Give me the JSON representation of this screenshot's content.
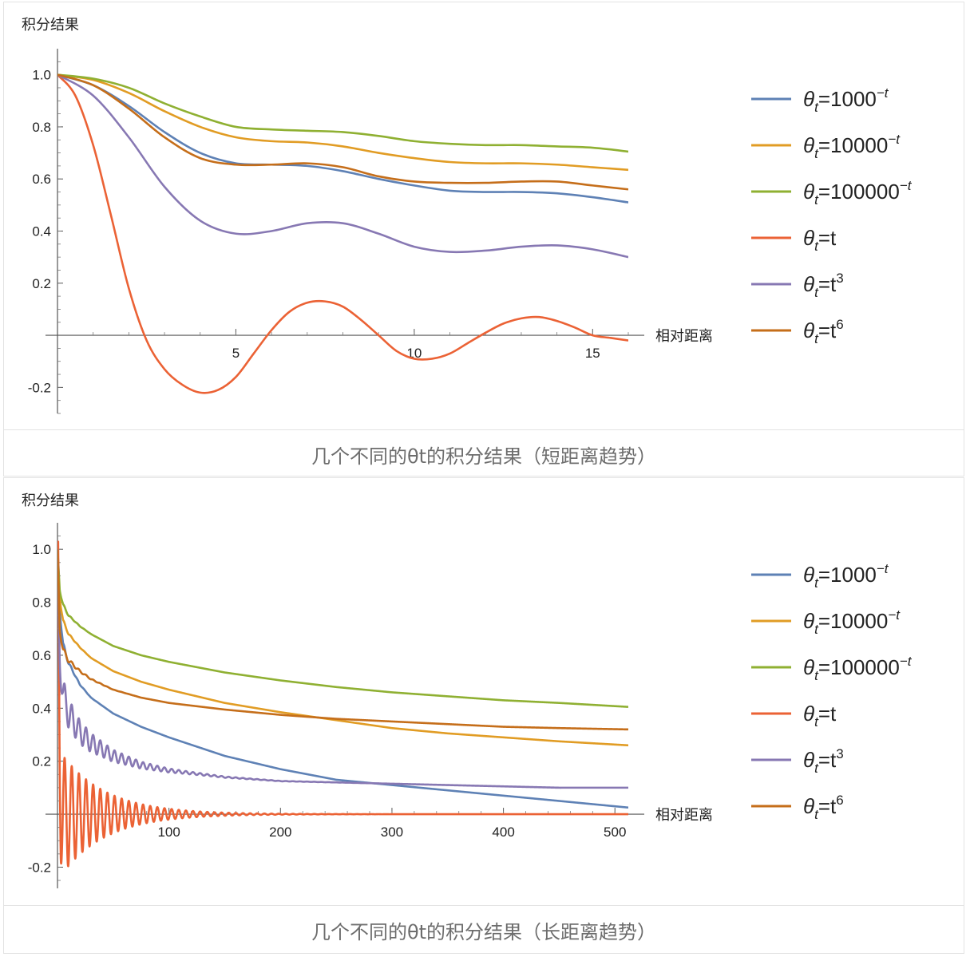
{
  "chart_data": [
    {
      "type": "line",
      "caption": "几个不同的θt的积分结果（短距离趋势）",
      "ylabel": "积分结果",
      "xlabel": "相对距离",
      "xlim": [
        0,
        16
      ],
      "ylim": [
        -0.3,
        1.1
      ],
      "xticks": [
        5,
        10,
        15
      ],
      "xtick_labels": [
        "5",
        "10",
        "15"
      ],
      "yticks": [
        -0.2,
        0.2,
        0.4,
        0.6,
        0.8,
        1.0
      ],
      "ytick_labels": [
        "-0.2",
        "0.2",
        "0.4",
        "0.6",
        "0.8",
        "1.0"
      ],
      "series": [
        {
          "name": "θt=1000^-t",
          "legend": {
            "base": "θ",
            "sub": "t",
            "mid": "=1000",
            "sup": "−t"
          },
          "color": "#5e81b5",
          "x": [
            0,
            1,
            2,
            3,
            4,
            5,
            6,
            7,
            8,
            9,
            10,
            11,
            12,
            13,
            14,
            15,
            16
          ],
          "y": [
            1.0,
            0.96,
            0.88,
            0.78,
            0.7,
            0.66,
            0.655,
            0.65,
            0.63,
            0.6,
            0.575,
            0.555,
            0.55,
            0.55,
            0.545,
            0.53,
            0.51
          ]
        },
        {
          "name": "θt=10000^-t",
          "legend": {
            "base": "θ",
            "sub": "t",
            "mid": "=10000",
            "sup": "−t"
          },
          "color": "#e19c24",
          "x": [
            0,
            1,
            2,
            3,
            4,
            5,
            6,
            7,
            8,
            9,
            10,
            11,
            12,
            13,
            14,
            15,
            16
          ],
          "y": [
            1.0,
            0.98,
            0.93,
            0.86,
            0.8,
            0.76,
            0.745,
            0.74,
            0.725,
            0.7,
            0.68,
            0.665,
            0.66,
            0.66,
            0.655,
            0.645,
            0.635
          ]
        },
        {
          "name": "θt=100000^-t",
          "legend": {
            "base": "θ",
            "sub": "t",
            "mid": "=100000",
            "sup": "−t"
          },
          "color": "#8fb032",
          "x": [
            0,
            1,
            2,
            3,
            4,
            5,
            6,
            7,
            8,
            9,
            10,
            11,
            12,
            13,
            14,
            15,
            16
          ],
          "y": [
            1.0,
            0.985,
            0.95,
            0.89,
            0.84,
            0.8,
            0.79,
            0.785,
            0.78,
            0.765,
            0.745,
            0.735,
            0.73,
            0.73,
            0.725,
            0.72,
            0.705
          ]
        },
        {
          "name": "θt=t",
          "legend": {
            "base": "θ",
            "sub": "t",
            "mid": "=t",
            "sup": ""
          },
          "color": "#eb6235",
          "x": [
            0,
            0.5,
            1,
            1.5,
            2,
            2.5,
            3,
            3.5,
            4,
            4.5,
            5,
            5.5,
            6,
            6.5,
            7,
            7.5,
            8,
            8.5,
            9,
            9.5,
            10,
            10.5,
            11,
            11.5,
            12,
            12.5,
            13,
            13.5,
            14,
            14.5,
            15,
            15.5,
            16
          ],
          "y": [
            1.0,
            0.92,
            0.73,
            0.46,
            0.18,
            -0.02,
            -0.13,
            -0.19,
            -0.22,
            -0.21,
            -0.16,
            -0.07,
            0.02,
            0.09,
            0.125,
            0.13,
            0.11,
            0.06,
            0.0,
            -0.06,
            -0.09,
            -0.09,
            -0.07,
            -0.03,
            0.01,
            0.045,
            0.065,
            0.07,
            0.055,
            0.03,
            0.0,
            -0.01,
            -0.02
          ]
        },
        {
          "name": "θt=t^3",
          "legend": {
            "base": "θ",
            "sub": "t",
            "mid": "=t",
            "sup": "3"
          },
          "color": "#8778b3",
          "x": [
            0,
            1,
            2,
            3,
            4,
            5,
            6,
            7,
            8,
            9,
            10,
            11,
            12,
            13,
            14,
            15,
            16
          ],
          "y": [
            1.0,
            0.92,
            0.76,
            0.57,
            0.44,
            0.39,
            0.4,
            0.43,
            0.43,
            0.39,
            0.34,
            0.32,
            0.325,
            0.34,
            0.345,
            0.33,
            0.3
          ]
        },
        {
          "name": "θt=t^6",
          "legend": {
            "base": "θ",
            "sub": "t",
            "mid": "=t",
            "sup": "6"
          },
          "color": "#c56e1a",
          "x": [
            0,
            1,
            2,
            3,
            4,
            5,
            6,
            7,
            8,
            9,
            10,
            11,
            12,
            13,
            14,
            15,
            16
          ],
          "y": [
            1.0,
            0.96,
            0.87,
            0.76,
            0.68,
            0.655,
            0.655,
            0.66,
            0.645,
            0.61,
            0.59,
            0.585,
            0.585,
            0.59,
            0.59,
            0.575,
            0.56
          ]
        }
      ]
    },
    {
      "type": "line",
      "caption": "几个不同的θt的积分结果（长距离趋势）",
      "ylabel": "积分结果",
      "xlabel": "相对距离",
      "xlim": [
        0,
        512
      ],
      "ylim": [
        -0.28,
        1.1
      ],
      "xticks": [
        100,
        200,
        300,
        400,
        500
      ],
      "xtick_labels": [
        "100",
        "200",
        "300",
        "400",
        "500"
      ],
      "yticks": [
        -0.2,
        0.2,
        0.4,
        0.6,
        0.8,
        1.0
      ],
      "ytick_labels": [
        "-0.2",
        "0.2",
        "0.4",
        "0.6",
        "0.8",
        "1.0"
      ],
      "series": [
        {
          "name": "θt=1000^-t",
          "legend": {
            "base": "θ",
            "sub": "t",
            "mid": "=1000",
            "sup": "−t"
          },
          "color": "#5e81b5",
          "x": [
            0,
            2,
            5,
            10,
            20,
            30,
            50,
            75,
            100,
            150,
            200,
            250,
            300,
            350,
            400,
            450,
            512
          ],
          "y": [
            1.0,
            0.78,
            0.64,
            0.57,
            0.49,
            0.44,
            0.38,
            0.33,
            0.29,
            0.22,
            0.17,
            0.13,
            0.11,
            0.09,
            0.07,
            0.05,
            0.025
          ],
          "osc": {
            "amp": 0.02,
            "decay": 8,
            "period": 6
          }
        },
        {
          "name": "θt=10000^-t",
          "legend": {
            "base": "θ",
            "sub": "t",
            "mid": "=10000",
            "sup": "−t"
          },
          "color": "#e19c24",
          "x": [
            0,
            2,
            5,
            10,
            20,
            30,
            50,
            75,
            100,
            150,
            200,
            250,
            300,
            350,
            400,
            450,
            512
          ],
          "y": [
            1.0,
            0.82,
            0.73,
            0.68,
            0.63,
            0.59,
            0.54,
            0.5,
            0.47,
            0.42,
            0.385,
            0.355,
            0.325,
            0.305,
            0.29,
            0.275,
            0.26
          ],
          "osc": {
            "amp": 0.012,
            "decay": 8,
            "period": 6
          }
        },
        {
          "name": "θt=100000^-t",
          "legend": {
            "base": "θ",
            "sub": "t",
            "mid": "=100000",
            "sup": "−t"
          },
          "color": "#8fb032",
          "x": [
            0,
            2,
            5,
            10,
            20,
            30,
            50,
            75,
            100,
            150,
            200,
            250,
            300,
            350,
            400,
            450,
            512
          ],
          "y": [
            1.0,
            0.85,
            0.79,
            0.75,
            0.71,
            0.68,
            0.635,
            0.6,
            0.575,
            0.535,
            0.505,
            0.48,
            0.46,
            0.445,
            0.43,
            0.42,
            0.405
          ],
          "osc": {
            "amp": 0.01,
            "decay": 8,
            "period": 6
          }
        },
        {
          "name": "θt=t",
          "legend": {
            "base": "θ",
            "sub": "t",
            "mid": "=t",
            "sup": ""
          },
          "color": "#eb6235",
          "x": [
            0,
            1,
            2,
            3,
            5,
            10,
            20,
            50,
            100,
            200,
            300,
            400,
            512
          ],
          "y": [
            1.0,
            0.7,
            0.25,
            0.05,
            0.0,
            0.0,
            0.0,
            0.0,
            0.0,
            0.0,
            0.0,
            0.0,
            0.0
          ],
          "osc": {
            "amp": 0.25,
            "decay": 40,
            "period": 6.4
          }
        },
        {
          "name": "θt=t^3",
          "legend": {
            "base": "θ",
            "sub": "t",
            "mid": "=t",
            "sup": "3"
          },
          "color": "#8778b3",
          "x": [
            0,
            2,
            5,
            10,
            20,
            30,
            50,
            75,
            100,
            150,
            200,
            250,
            300,
            350,
            400,
            450,
            512
          ],
          "y": [
            1.0,
            0.6,
            0.45,
            0.38,
            0.31,
            0.27,
            0.22,
            0.185,
            0.165,
            0.14,
            0.125,
            0.12,
            0.115,
            0.11,
            0.105,
            0.1,
            0.1
          ],
          "osc": {
            "amp": 0.07,
            "decay": 45,
            "period": 6.4
          }
        },
        {
          "name": "θt=t^6",
          "legend": {
            "base": "θ",
            "sub": "t",
            "mid": "=t",
            "sup": "6"
          },
          "color": "#c56e1a",
          "x": [
            0,
            2,
            5,
            10,
            20,
            30,
            50,
            75,
            100,
            150,
            200,
            250,
            300,
            350,
            400,
            450,
            512
          ],
          "y": [
            1.0,
            0.7,
            0.62,
            0.58,
            0.54,
            0.51,
            0.47,
            0.44,
            0.42,
            0.395,
            0.375,
            0.36,
            0.35,
            0.34,
            0.33,
            0.325,
            0.32
          ],
          "osc": {
            "amp": 0.015,
            "decay": 15,
            "period": 6.4
          }
        }
      ]
    }
  ]
}
